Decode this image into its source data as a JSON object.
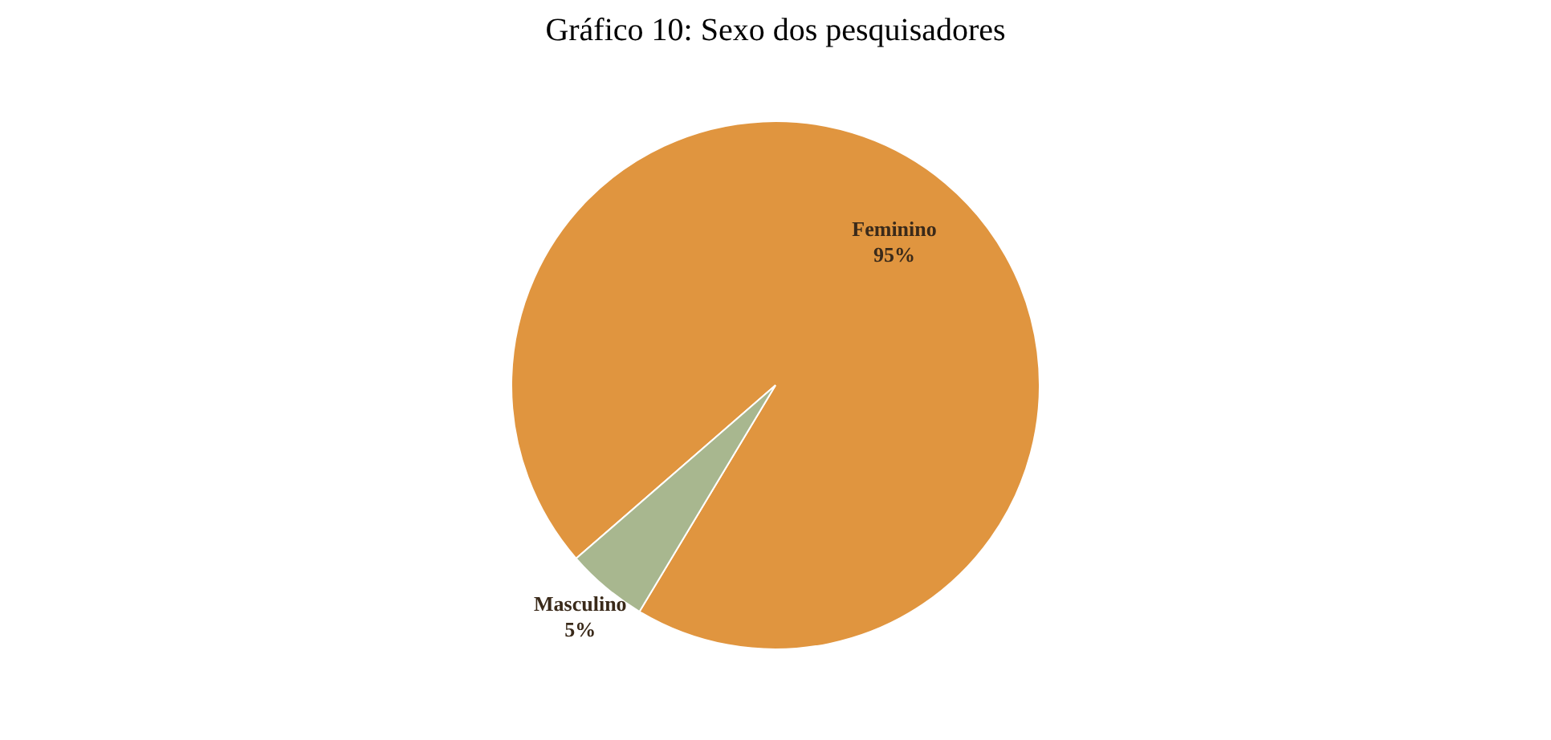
{
  "chart_data": {
    "type": "pie",
    "title": "Gráfico 10: Sexo dos pesquisadores",
    "categories": [
      "Feminino",
      "Masculino"
    ],
    "values": [
      95,
      5
    ],
    "value_labels": [
      "95%",
      "5%"
    ],
    "colors": [
      "#e0953f",
      "#a8b78f"
    ],
    "legend": false
  }
}
